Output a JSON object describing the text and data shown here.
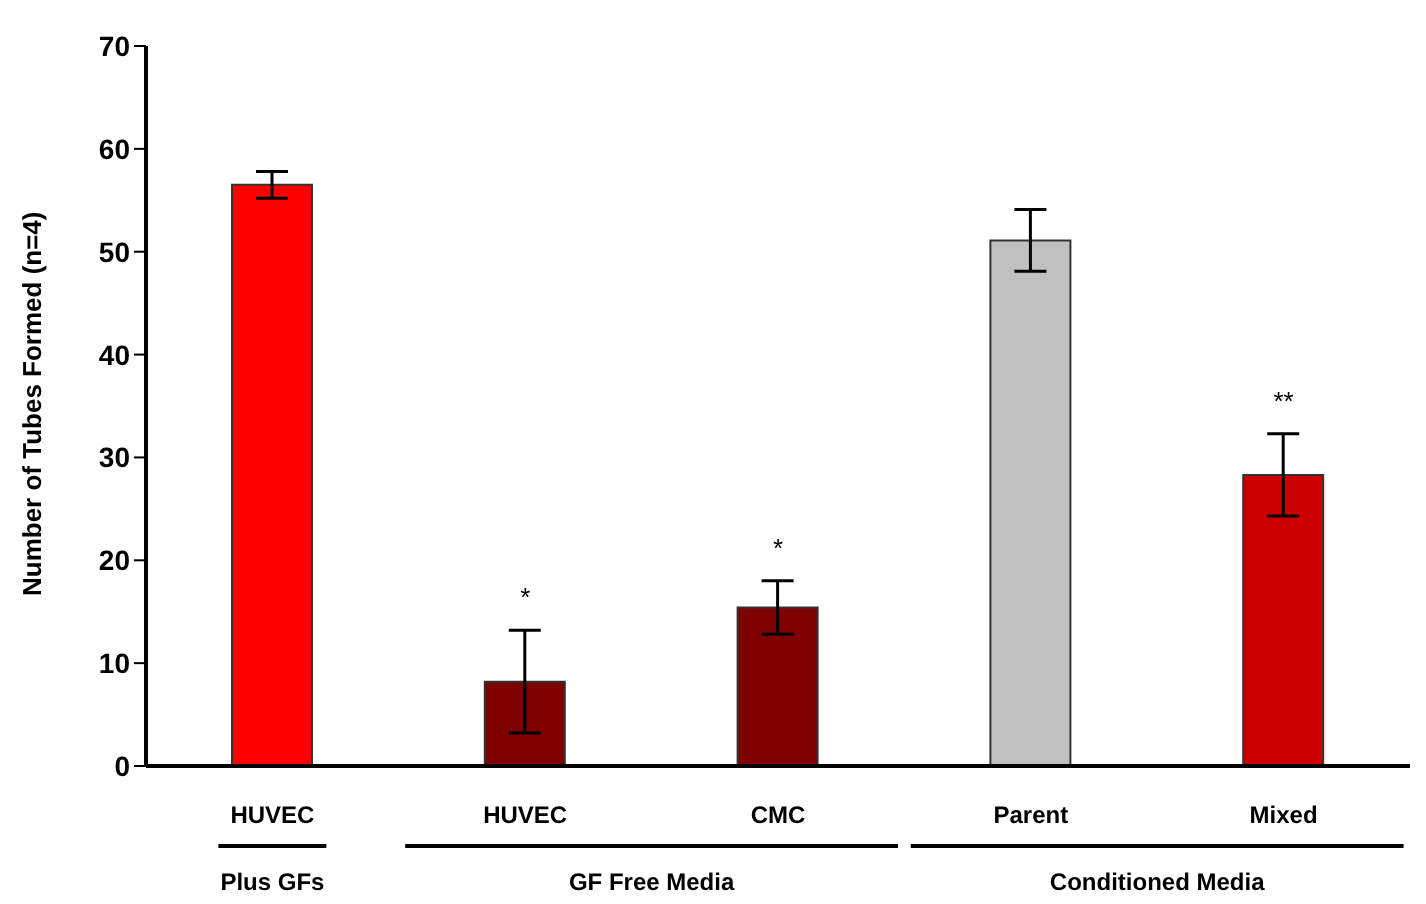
{
  "chart_data": {
    "type": "bar",
    "ylabel": "Number of Tubes Formed (n=4)",
    "categories": [
      "HUVEC",
      "HUVEC",
      "CMC",
      "Parent",
      "Mixed"
    ],
    "values": [
      56.5,
      8.2,
      15.4,
      51.1,
      28.3
    ],
    "errors": [
      1.3,
      5,
      2.6,
      3,
      4
    ],
    "colors": [
      "#ff0000",
      "#7f0000",
      "#7f0000",
      "#c0c0c0",
      "#cc0000"
    ],
    "ylim": [
      0,
      70
    ],
    "yticks": [
      0,
      10,
      20,
      30,
      40,
      50,
      60,
      70
    ],
    "grid": false,
    "annotations": [
      "*",
      "*",
      "**",
      "Plus GFs",
      "GF Free Media",
      "Conditioned Media"
    ]
  }
}
